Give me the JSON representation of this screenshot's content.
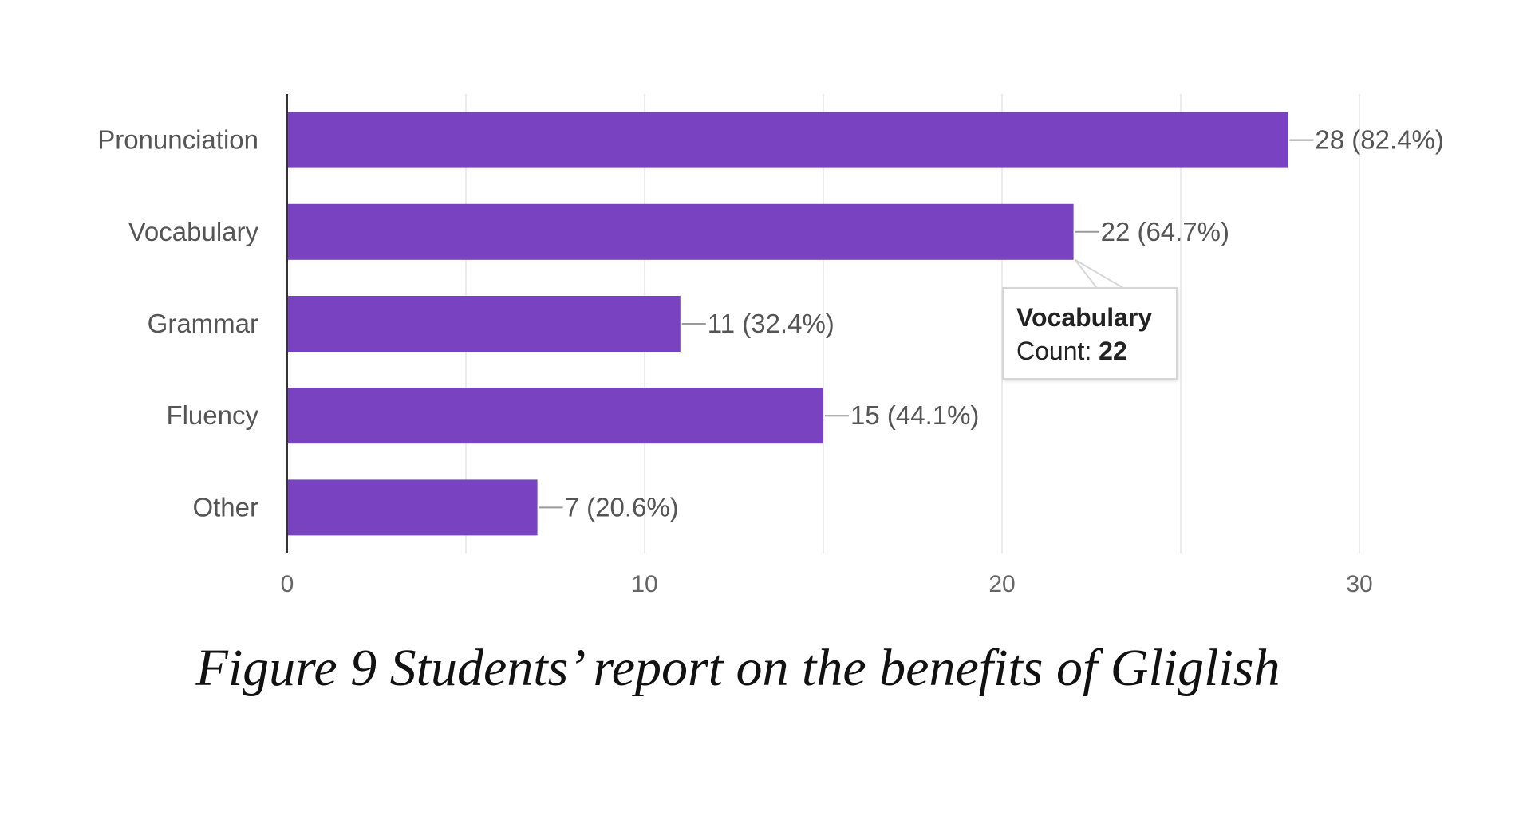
{
  "chart_data": {
    "type": "bar",
    "orientation": "horizontal",
    "categories": [
      "Pronunciation",
      "Vocabulary",
      "Grammar",
      "Fluency",
      "Other"
    ],
    "values": [
      28,
      22,
      11,
      15,
      7
    ],
    "data_labels": [
      "28 (82.4%)",
      "22 (64.7%)",
      "11 (32.4%)",
      "15 (44.1%)",
      "7 (20.6%)"
    ],
    "xlim": [
      0,
      30
    ],
    "xticks": [
      0,
      10,
      20,
      30
    ],
    "grid": true,
    "bar_color": "#7842c1",
    "tooltip": {
      "category": "Vocabulary",
      "count_label": "Count:",
      "count_value": "22"
    }
  },
  "caption": "Figure 9 Students’ report on the benefits of Gliglish"
}
